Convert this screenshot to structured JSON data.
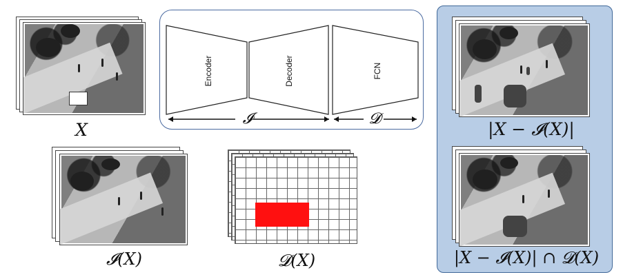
{
  "labels": {
    "x": "X",
    "ix": "𝓘(X)",
    "dx": "𝓓(X)",
    "diff": "|X − 𝓘(X)|",
    "intersection": "|X − 𝓘(X)| ∩ 𝓓(X)",
    "i_arrow": "𝓘",
    "d_arrow": "𝓓"
  },
  "network": {
    "encoder": "Encoder",
    "decoder": "Decoder",
    "fcn": "FCN"
  },
  "colors": {
    "red": "#ff1010",
    "blue_border": "#4a6aa0",
    "panel_blue": "#b8cde6"
  }
}
